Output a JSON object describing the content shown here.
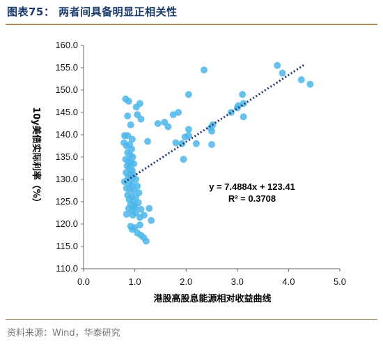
{
  "header": {
    "title": "图表75：  两者间具备明显正相关性"
  },
  "footer": {
    "source": "资料来源：Wind，华泰研究"
  },
  "chart_data": {
    "type": "scatter",
    "xlabel": "港股高股息能源相对收益曲线",
    "ylabel": "10y美债实际利率（%）",
    "xlim": [
      0.0,
      5.0
    ],
    "ylim": [
      110.0,
      160.0
    ],
    "xticks": [
      "0.0",
      "1.0",
      "2.0",
      "3.0",
      "4.0",
      "5.0"
    ],
    "yticks": [
      "110.0",
      "115.0",
      "120.0",
      "125.0",
      "130.0",
      "135.0",
      "140.0",
      "145.0",
      "150.0",
      "155.0",
      "160.0"
    ],
    "grid": false,
    "marker_color": "#4cb6ea",
    "trendline": {
      "slope": 7.4884,
      "intercept": 123.41,
      "x_range": [
        0.8,
        4.3
      ],
      "style": "dotted",
      "color": "#1f3a73",
      "equation": "y = 7.4884x + 123.41",
      "r2": "R² = 0.3708"
    },
    "points": [
      [
        0.82,
        148.0
      ],
      [
        0.88,
        147.5
      ],
      [
        0.86,
        144.2
      ],
      [
        0.92,
        142.2
      ],
      [
        0.8,
        139.8
      ],
      [
        0.86,
        139.8
      ],
      [
        0.79,
        138.2
      ],
      [
        0.95,
        139.0
      ],
      [
        0.84,
        137.5
      ],
      [
        0.9,
        137.8
      ],
      [
        0.94,
        136.8
      ],
      [
        0.86,
        136.0
      ],
      [
        0.91,
        135.5
      ],
      [
        0.96,
        135.0
      ],
      [
        0.82,
        134.5
      ],
      [
        0.88,
        134.0
      ],
      [
        0.93,
        133.8
      ],
      [
        0.98,
        133.5
      ],
      [
        0.85,
        133.0
      ],
      [
        0.9,
        132.5
      ],
      [
        0.95,
        132.0
      ],
      [
        0.83,
        131.5
      ],
      [
        0.92,
        131.2
      ],
      [
        0.97,
        131.0
      ],
      [
        0.87,
        130.5
      ],
      [
        0.93,
        130.2
      ],
      [
        1.02,
        130.0
      ],
      [
        0.8,
        129.5
      ],
      [
        0.89,
        129.0
      ],
      [
        0.95,
        128.8
      ],
      [
        1.05,
        128.5
      ],
      [
        0.84,
        128.0
      ],
      [
        0.91,
        127.8
      ],
      [
        0.98,
        127.5
      ],
      [
        1.08,
        127.0
      ],
      [
        0.86,
        126.5
      ],
      [
        0.94,
        126.2
      ],
      [
        1.02,
        126.0
      ],
      [
        0.89,
        125.5
      ],
      [
        0.97,
        125.0
      ],
      [
        1.07,
        124.8
      ],
      [
        0.92,
        124.5
      ],
      [
        1.0,
        124.0
      ],
      [
        0.88,
        123.5
      ],
      [
        0.95,
        123.0
      ],
      [
        1.12,
        123.3
      ],
      [
        0.84,
        122.2
      ],
      [
        0.96,
        122.0
      ],
      [
        1.02,
        122.5
      ],
      [
        1.28,
        123.5
      ],
      [
        1.18,
        122.0
      ],
      [
        1.32,
        120.8
      ],
      [
        0.92,
        119.5
      ],
      [
        1.0,
        119.2
      ],
      [
        0.95,
        118.8
      ],
      [
        1.1,
        119.8
      ],
      [
        1.05,
        118.0
      ],
      [
        1.12,
        117.5
      ],
      [
        1.17,
        117.0
      ],
      [
        1.22,
        116.2
      ],
      [
        1.0,
        123.8
      ],
      [
        1.1,
        121.5
      ],
      [
        1.03,
        146.2
      ],
      [
        1.1,
        147.0
      ],
      [
        1.05,
        144.5
      ],
      [
        1.12,
        143.5
      ],
      [
        1.25,
        138.5
      ],
      [
        1.45,
        142.5
      ],
      [
        1.58,
        142.8
      ],
      [
        1.65,
        141.8
      ],
      [
        1.75,
        144.5
      ],
      [
        1.85,
        145.0
      ],
      [
        1.8,
        138.2
      ],
      [
        1.92,
        138.0
      ],
      [
        1.98,
        139.5
      ],
      [
        2.05,
        141.2
      ],
      [
        2.05,
        139.8
      ],
      [
        2.05,
        149.0
      ],
      [
        2.2,
        138.0
      ],
      [
        1.95,
        134.5
      ],
      [
        2.35,
        154.5
      ],
      [
        2.5,
        140.8
      ],
      [
        2.48,
        141.5
      ],
      [
        2.52,
        142.2
      ],
      [
        2.5,
        137.8
      ],
      [
        2.88,
        145.0
      ],
      [
        3.0,
        146.0
      ],
      [
        3.02,
        146.5
      ],
      [
        3.1,
        149.0
      ],
      [
        3.12,
        144.0
      ],
      [
        3.12,
        147.0
      ],
      [
        3.78,
        155.5
      ],
      [
        3.88,
        153.8
      ],
      [
        4.25,
        152.3
      ],
      [
        4.42,
        151.3
      ]
    ]
  }
}
